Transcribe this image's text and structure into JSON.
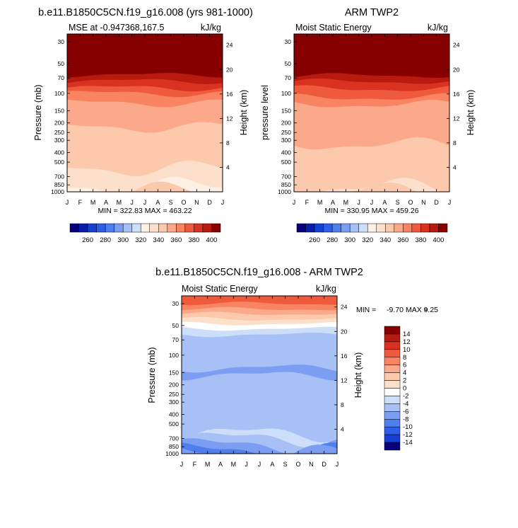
{
  "chart_data": [
    {
      "type": "heatmap",
      "title": "b.e11.B1850C5CN.f19_g16.008 (yrs 981-1000)",
      "subtitle_left": "MSE at -0.947368,167.5",
      "subtitle_right": "kJ/kg",
      "ylabel": "Pressure (mb)",
      "ylabel_right": "Height (km)",
      "x_ticks": [
        "J",
        "F",
        "M",
        "A",
        "M",
        "J",
        "J",
        "A",
        "S",
        "O",
        "N",
        "D",
        "J"
      ],
      "y_ticks": [
        "30",
        "50",
        "70",
        "100",
        "150",
        "200",
        "250",
        "300",
        "400",
        "500",
        "700",
        "850",
        "1000"
      ],
      "y_right_ticks": [
        "24",
        "20",
        "16",
        "12",
        "8",
        "4"
      ],
      "stats": "MIN = 322.83 MAX = 463.22",
      "bands": [
        {
          "pressure": 50,
          "value": 420
        },
        {
          "pressure": 57,
          "value": 400
        },
        {
          "pressure": 65,
          "value": 390
        },
        {
          "pressure": 75,
          "value": 380
        },
        {
          "pressure": 88,
          "value": 370
        },
        {
          "pressure": 100,
          "value": 360
        },
        {
          "pressure": 125,
          "value": 350
        },
        {
          "pressure": 220,
          "value": 340
        },
        {
          "pressure": 580,
          "value": 330
        },
        {
          "pressure": 880,
          "value": 320
        },
        {
          "pressure": 1000,
          "value": 340
        }
      ]
    },
    {
      "type": "heatmap",
      "title": "ARM TWP2",
      "subtitle_left": "Moist Static Energy",
      "subtitle_right": "kJ/kg",
      "ylabel": "pressure level",
      "ylabel_right": "Height (km)",
      "x_ticks": [
        "J",
        "F",
        "M",
        "A",
        "M",
        "J",
        "J",
        "A",
        "S",
        "O",
        "N",
        "D",
        "J"
      ],
      "y_ticks": [
        "30",
        "50",
        "70",
        "100",
        "150",
        "200",
        "250",
        "300",
        "400",
        "500",
        "700",
        "850",
        "1000"
      ],
      "y_right_ticks": [
        "24",
        "20",
        "16",
        "12",
        "8",
        "4"
      ],
      "stats": "MIN = 330.95 MAX = 459.26",
      "bands": [
        {
          "pressure": 50,
          "value": 420
        },
        {
          "pressure": 58,
          "value": 400
        },
        {
          "pressure": 66,
          "value": 390
        },
        {
          "pressure": 76,
          "value": 380
        },
        {
          "pressure": 90,
          "value": 370
        },
        {
          "pressure": 110,
          "value": 360
        },
        {
          "pressure": 130,
          "value": 350
        },
        {
          "pressure": 330,
          "value": 340
        },
        {
          "pressure": 900,
          "value": 330
        },
        {
          "pressure": 1000,
          "value": 340
        }
      ]
    },
    {
      "type": "heatmap",
      "title": "b.e11.B1850C5CN.f19_g16.008 - ARM TWP2",
      "subtitle_left": "Moist Static Energy",
      "subtitle_right": "kJ/kg",
      "ylabel": "Pressure (mb)",
      "ylabel_right": "Height (km)",
      "x_ticks": [
        "J",
        "F",
        "M",
        "A",
        "M",
        "J",
        "J",
        "A",
        "S",
        "O",
        "N",
        "D",
        "J"
      ],
      "y_ticks": [
        "30",
        "50",
        "70",
        "100",
        "150",
        "200",
        "250",
        "300",
        "400",
        "500",
        "700",
        "850",
        "1000"
      ],
      "y_right_ticks": [
        "24",
        "20",
        "16",
        "12",
        "8",
        "4"
      ],
      "stats_min_label": "MIN =",
      "stats_min": "-9.70",
      "stats_max_label": "MAX =",
      "stats_max": "9.25",
      "bands": [
        {
          "pressure": 30,
          "value": 8
        },
        {
          "pressure": 34,
          "value": 6
        },
        {
          "pressure": 38,
          "value": 4
        },
        {
          "pressure": 43,
          "value": 2
        },
        {
          "pressure": 48,
          "value": 0
        },
        {
          "pressure": 54,
          "value": -2
        },
        {
          "pressure": 62,
          "value": -4
        },
        {
          "pressure": 135,
          "value": -6
        },
        {
          "pressure": 160,
          "value": -4
        },
        {
          "pressure": 620,
          "value": -2
        },
        {
          "pressure": 700,
          "value": -4
        },
        {
          "pressure": 820,
          "value": -6
        },
        {
          "pressure": 930,
          "value": -8
        },
        {
          "pressure": 1000,
          "value": -6
        }
      ]
    }
  ],
  "colorbar_abs": {
    "tick_labels": [
      "260",
      "280",
      "300",
      "320",
      "340",
      "360",
      "380",
      "400"
    ],
    "colors": [
      "#08007a",
      "#0a1cab",
      "#1540d4",
      "#2c5fe8",
      "#4f7eee",
      "#7b9ef2",
      "#a7c0f5",
      "#cddff8",
      "#fdf0e4",
      "#fde0cc",
      "#fcc9ad",
      "#fba98a",
      "#f88462",
      "#f05a3c",
      "#da3220",
      "#b81a10",
      "#860000"
    ]
  },
  "colorbar_diff": {
    "labels": [
      "14",
      "12",
      "10",
      "8",
      "6",
      "4",
      "2",
      "0",
      "-2",
      "-4",
      "-6",
      "-8",
      "-10",
      "-12",
      "-14"
    ],
    "colors": [
      "#860000",
      "#b81a10",
      "#da3220",
      "#f05a3c",
      "#f88462",
      "#fba98a",
      "#fcc9ad",
      "#fde0cc",
      "#ffffff",
      "#cddff8",
      "#a7c0f5",
      "#7b9ef2",
      "#4f7eee",
      "#2c5fe8",
      "#1540d4",
      "#08007a"
    ]
  }
}
